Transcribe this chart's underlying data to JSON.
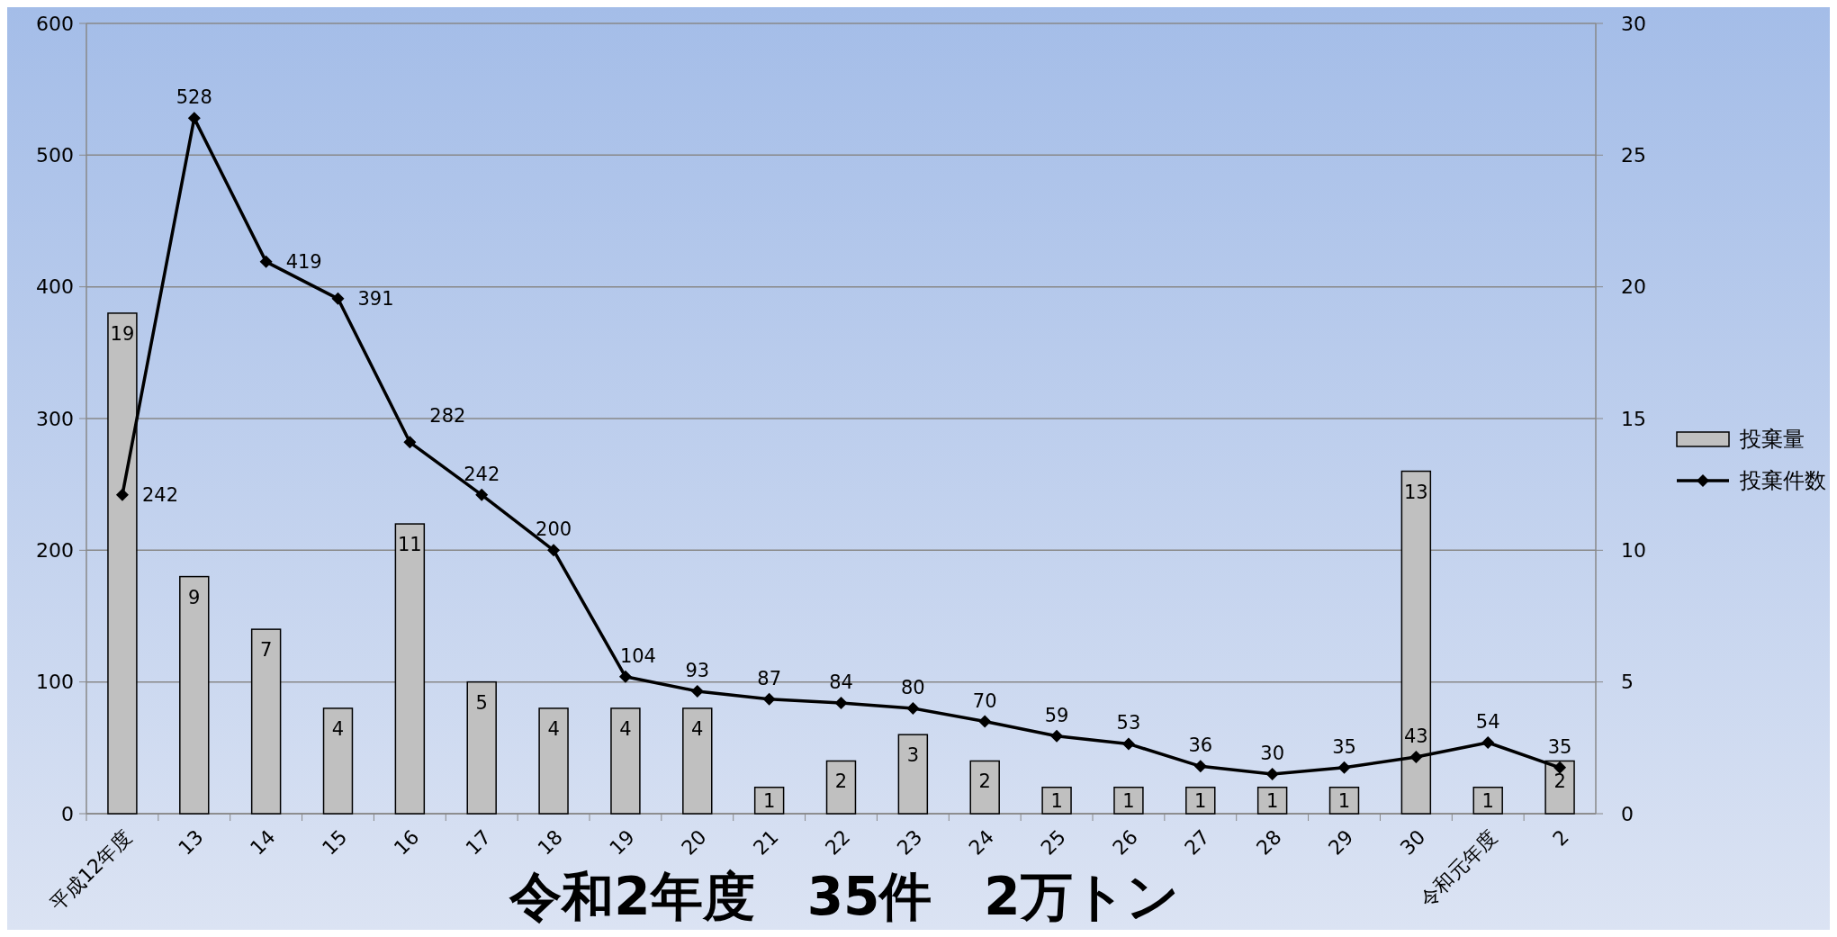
{
  "chart_data": {
    "type": "bar",
    "categories": [
      "平成12年度",
      "13",
      "14",
      "15",
      "16",
      "17",
      "18",
      "19",
      "20",
      "21",
      "22",
      "23",
      "24",
      "25",
      "26",
      "27",
      "28",
      "29",
      "30",
      "令和元年度",
      "2"
    ],
    "series": [
      {
        "name": "投棄量",
        "axis": "y2",
        "color": "#c0c0c0",
        "values": [
          19,
          9,
          7,
          4,
          11,
          5,
          4,
          4,
          4,
          1,
          2,
          3,
          2,
          1,
          1,
          1,
          1,
          1,
          13,
          1,
          2
        ]
      },
      {
        "name": "投棄件数",
        "type": "line",
        "color": "#000000",
        "values": [
          242,
          528,
          419,
          391,
          282,
          242,
          200,
          104,
          93,
          87,
          84,
          80,
          70,
          59,
          53,
          36,
          30,
          35,
          43,
          54,
          35
        ]
      }
    ],
    "ylim": [
      0,
      600
    ],
    "yticks": [
      0,
      100,
      200,
      300,
      400,
      500,
      600
    ],
    "y2lim": [
      0,
      30
    ],
    "y2ticks": [
      0,
      5,
      10,
      15,
      20,
      25,
      30
    ],
    "grid": "y",
    "legend": "right",
    "marker": "diamond",
    "line_style": "solid",
    "data_labels": true,
    "annotations": [
      "令和2年度　35件　2万トン"
    ]
  }
}
